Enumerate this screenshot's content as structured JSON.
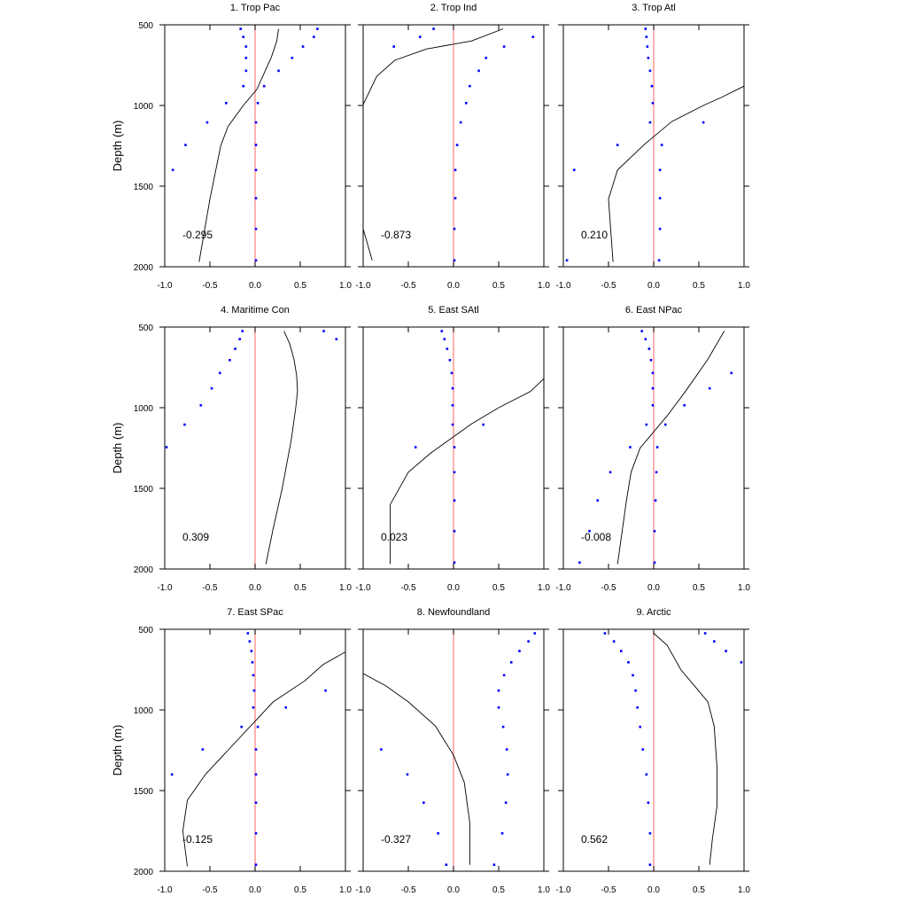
{
  "chart_data": [
    {
      "type": "line",
      "title": "1. Trop Pac",
      "correlation": "-0.295",
      "ylabel": "Depth (m)",
      "xlim": [
        -1.0,
        1.0
      ],
      "ylim": [
        500,
        2000
      ],
      "xticks": [
        "-1.0",
        "-0.5",
        "0.0",
        "0.5",
        "1.0"
      ],
      "yticks": [
        "500",
        "1000",
        "1500",
        "2000"
      ],
      "zero_line_color": "#ff8080",
      "points_color": "#0000ff",
      "line_color": "#000000",
      "points": [
        [
          -0.16,
          525
        ],
        [
          -0.13,
          575
        ],
        [
          -0.1,
          635
        ],
        [
          -0.1,
          705
        ],
        [
          -0.1,
          785
        ],
        [
          -0.13,
          880
        ],
        [
          -0.32,
          985
        ],
        [
          -0.53,
          1105
        ],
        [
          -0.77,
          1245
        ],
        [
          -0.91,
          1400
        ],
        [
          0.03,
          985
        ],
        [
          0.01,
          1105
        ],
        [
          0.01,
          1245
        ],
        [
          0.01,
          1400
        ],
        [
          0.01,
          1575
        ],
        [
          0.01,
          1765
        ],
        [
          0.01,
          1960
        ],
        [
          0.69,
          525
        ],
        [
          0.65,
          575
        ],
        [
          0.53,
          635
        ],
        [
          0.41,
          705
        ],
        [
          0.26,
          785
        ],
        [
          0.1,
          880
        ]
      ],
      "line": [
        [
          0.26,
          525
        ],
        [
          0.24,
          600
        ],
        [
          0.18,
          700
        ],
        [
          0.1,
          800
        ],
        [
          0.02,
          900
        ],
        [
          -0.13,
          1000
        ],
        [
          -0.3,
          1130
        ],
        [
          -0.38,
          1250
        ],
        [
          -0.5,
          1580
        ],
        [
          -0.62,
          1970
        ]
      ]
    },
    {
      "type": "line",
      "title": "2. Trop Ind",
      "correlation": "-0.873",
      "ylabel": "",
      "xlim": [
        -1.0,
        1.0
      ],
      "ylim": [
        500,
        2000
      ],
      "xticks": [
        "-1.0",
        "-0.5",
        "0.0",
        "0.5",
        "1.0"
      ],
      "yticks": [],
      "zero_line_color": "#ff8080",
      "points_color": "#0000ff",
      "line_color": "#000000",
      "points": [
        [
          -0.22,
          525
        ],
        [
          -0.37,
          575
        ],
        [
          -0.66,
          635
        ],
        [
          0.88,
          575
        ],
        [
          0.56,
          635
        ],
        [
          0.36,
          705
        ],
        [
          0.28,
          785
        ],
        [
          0.18,
          880
        ],
        [
          0.14,
          985
        ],
        [
          0.08,
          1105
        ],
        [
          0.04,
          1245
        ],
        [
          0.02,
          1400
        ],
        [
          0.02,
          1575
        ],
        [
          0.01,
          1765
        ],
        [
          0.01,
          1960
        ]
      ],
      "line": [
        [
          0.55,
          525
        ],
        [
          0.2,
          600
        ],
        [
          -0.3,
          650
        ],
        [
          -0.65,
          720
        ],
        [
          -0.85,
          820
        ],
        [
          -1.0,
          995
        ]
      ],
      "line2": [
        [
          -1.0,
          1765
        ],
        [
          -0.9,
          1960
        ]
      ]
    },
    {
      "type": "line",
      "title": "3. Trop Atl",
      "correlation": "0.210",
      "ylabel": "",
      "xlim": [
        -1.0,
        1.0
      ],
      "ylim": [
        500,
        2000
      ],
      "xticks": [
        "-1.0",
        "-0.5",
        "0.0",
        "0.5",
        "1.0"
      ],
      "yticks": [],
      "zero_line_color": "#ff8080",
      "points_color": "#0000ff",
      "line_color": "#000000",
      "points": [
        [
          -0.09,
          525
        ],
        [
          -0.08,
          575
        ],
        [
          -0.07,
          635
        ],
        [
          -0.06,
          705
        ],
        [
          -0.04,
          785
        ],
        [
          -0.02,
          880
        ],
        [
          -0.01,
          985
        ],
        [
          -0.04,
          1105
        ],
        [
          -0.4,
          1245
        ],
        [
          -0.88,
          1400
        ],
        [
          -0.96,
          1960
        ],
        [
          0.55,
          1105
        ],
        [
          0.09,
          1245
        ],
        [
          0.07,
          1400
        ],
        [
          0.07,
          1575
        ],
        [
          0.07,
          1765
        ],
        [
          0.06,
          1960
        ]
      ],
      "line": [
        [
          1.0,
          880
        ],
        [
          0.75,
          950
        ],
        [
          0.55,
          1000
        ],
        [
          0.2,
          1100
        ],
        [
          -0.1,
          1240
        ],
        [
          -0.4,
          1400
        ],
        [
          -0.5,
          1580
        ],
        [
          -0.45,
          1970
        ]
      ]
    },
    {
      "type": "line",
      "title": "4. Maritime Con",
      "correlation": "0.309",
      "ylabel": "Depth (m)",
      "xlim": [
        -1.0,
        1.0
      ],
      "ylim": [
        500,
        2000
      ],
      "xticks": [
        "-1.0",
        "-0.5",
        "0.0",
        "0.5",
        "1.0"
      ],
      "yticks": [
        "500",
        "1000",
        "1500",
        "2000"
      ],
      "zero_line_color": "#ff8080",
      "points_color": "#0000ff",
      "line_color": "#000000",
      "points": [
        [
          -0.14,
          525
        ],
        [
          -0.17,
          575
        ],
        [
          -0.22,
          635
        ],
        [
          -0.28,
          705
        ],
        [
          -0.39,
          785
        ],
        [
          -0.48,
          880
        ],
        [
          -0.6,
          985
        ],
        [
          -0.78,
          1105
        ],
        [
          -0.98,
          1245
        ],
        [
          0.76,
          525
        ],
        [
          0.9,
          575
        ]
      ],
      "line": [
        [
          0.32,
          525
        ],
        [
          0.38,
          600
        ],
        [
          0.43,
          700
        ],
        [
          0.46,
          800
        ],
        [
          0.47,
          900
        ],
        [
          0.45,
          1000
        ],
        [
          0.4,
          1200
        ],
        [
          0.35,
          1350
        ],
        [
          0.3,
          1500
        ],
        [
          0.2,
          1750
        ],
        [
          0.12,
          1970
        ]
      ]
    },
    {
      "type": "line",
      "title": "5. East SAtl",
      "correlation": "0.023",
      "ylabel": "",
      "xlim": [
        -1.0,
        1.0
      ],
      "ylim": [
        500,
        2000
      ],
      "xticks": [
        "-1.0",
        "-0.5",
        "0.0",
        "0.5",
        "1.0"
      ],
      "yticks": [],
      "zero_line_color": "#ff8080",
      "points_color": "#0000ff",
      "line_color": "#000000",
      "points": [
        [
          -0.13,
          525
        ],
        [
          -0.1,
          575
        ],
        [
          -0.07,
          635
        ],
        [
          -0.04,
          705
        ],
        [
          -0.02,
          785
        ],
        [
          -0.01,
          880
        ],
        [
          -0.01,
          985
        ],
        [
          -0.01,
          1105
        ],
        [
          -0.42,
          1245
        ],
        [
          0.33,
          1105
        ],
        [
          0.01,
          1245
        ],
        [
          0.01,
          1400
        ],
        [
          0.01,
          1575
        ],
        [
          0.01,
          1765
        ],
        [
          0.01,
          1960
        ]
      ],
      "line": [
        [
          1.0,
          820
        ],
        [
          0.85,
          900
        ],
        [
          0.5,
          1000
        ],
        [
          0.2,
          1100
        ],
        [
          0.0,
          1180
        ],
        [
          -0.25,
          1280
        ],
        [
          -0.5,
          1400
        ],
        [
          -0.7,
          1600
        ],
        [
          -0.7,
          1970
        ]
      ]
    },
    {
      "type": "line",
      "title": "6. East NPac",
      "correlation": "-0.008",
      "ylabel": "",
      "xlim": [
        -1.0,
        1.0
      ],
      "ylim": [
        500,
        2000
      ],
      "xticks": [
        "-1.0",
        "-0.5",
        "0.0",
        "0.5",
        "1.0"
      ],
      "yticks": [],
      "zero_line_color": "#ff8080",
      "points_color": "#0000ff",
      "line_color": "#000000",
      "points": [
        [
          -0.13,
          525
        ],
        [
          -0.09,
          575
        ],
        [
          -0.05,
          635
        ],
        [
          -0.03,
          705
        ],
        [
          -0.01,
          785
        ],
        [
          -0.01,
          880
        ],
        [
          -0.01,
          985
        ],
        [
          -0.08,
          1105
        ],
        [
          -0.26,
          1245
        ],
        [
          -0.48,
          1400
        ],
        [
          -0.62,
          1575
        ],
        [
          -0.71,
          1765
        ],
        [
          -0.82,
          1960
        ],
        [
          0.86,
          785
        ],
        [
          0.62,
          880
        ],
        [
          0.34,
          985
        ],
        [
          0.13,
          1105
        ],
        [
          0.04,
          1245
        ],
        [
          0.03,
          1400
        ],
        [
          0.02,
          1575
        ],
        [
          0.01,
          1765
        ],
        [
          0.01,
          1960
        ]
      ],
      "line": [
        [
          0.78,
          525
        ],
        [
          0.6,
          700
        ],
        [
          0.35,
          900
        ],
        [
          0.15,
          1050
        ],
        [
          -0.15,
          1250
        ],
        [
          -0.25,
          1400
        ],
        [
          -0.3,
          1570
        ],
        [
          -0.4,
          1970
        ]
      ]
    },
    {
      "type": "line",
      "title": "7. East SPac",
      "correlation": "-0.125",
      "ylabel": "Depth (m)",
      "xlim": [
        -1.0,
        1.0
      ],
      "ylim": [
        500,
        2000
      ],
      "xticks": [
        "-1.0",
        "-0.5",
        "0.0",
        "0.5",
        "1.0"
      ],
      "yticks": [
        "500",
        "1000",
        "1500",
        "2000"
      ],
      "zero_line_color": "#ff8080",
      "points_color": "#0000ff",
      "line_color": "#000000",
      "points": [
        [
          -0.08,
          525
        ],
        [
          -0.06,
          575
        ],
        [
          -0.04,
          635
        ],
        [
          -0.03,
          705
        ],
        [
          -0.02,
          785
        ],
        [
          -0.01,
          880
        ],
        [
          -0.02,
          985
        ],
        [
          -0.15,
          1105
        ],
        [
          -0.58,
          1245
        ],
        [
          -0.92,
          1400
        ],
        [
          0.34,
          985
        ],
        [
          0.78,
          880
        ],
        [
          0.03,
          1105
        ],
        [
          0.01,
          1245
        ],
        [
          0.01,
          1400
        ],
        [
          0.01,
          1575
        ],
        [
          0.01,
          1765
        ],
        [
          0.01,
          1960
        ]
      ],
      "line": [
        [
          1.0,
          640
        ],
        [
          0.75,
          720
        ],
        [
          0.55,
          820
        ],
        [
          0.2,
          950
        ],
        [
          -0.05,
          1100
        ],
        [
          -0.3,
          1250
        ],
        [
          -0.55,
          1400
        ],
        [
          -0.75,
          1560
        ],
        [
          -0.8,
          1750
        ],
        [
          -0.75,
          1970
        ]
      ]
    },
    {
      "type": "line",
      "title": "8. Newfoundland",
      "correlation": "-0.327",
      "ylabel": "",
      "xlim": [
        -1.0,
        1.0
      ],
      "ylim": [
        500,
        2000
      ],
      "xticks": [
        "-1.0",
        "-0.5",
        "0.0",
        "0.5",
        "1.0"
      ],
      "yticks": [],
      "zero_line_color": "#ff8080",
      "points_color": "#0000ff",
      "line_color": "#000000",
      "points": [
        [
          0.9,
          525
        ],
        [
          0.83,
          575
        ],
        [
          0.73,
          635
        ],
        [
          0.64,
          705
        ],
        [
          0.56,
          785
        ],
        [
          0.5,
          880
        ],
        [
          0.5,
          985
        ],
        [
          0.55,
          1105
        ],
        [
          0.59,
          1245
        ],
        [
          0.6,
          1400
        ],
        [
          0.58,
          1575
        ],
        [
          0.54,
          1765
        ],
        [
          0.45,
          1960
        ],
        [
          -0.8,
          1245
        ],
        [
          -0.51,
          1400
        ],
        [
          -0.33,
          1575
        ],
        [
          -0.17,
          1765
        ],
        [
          -0.08,
          1960
        ]
      ],
      "line": [
        [
          -1.0,
          775
        ],
        [
          -0.75,
          850
        ],
        [
          -0.5,
          950
        ],
        [
          -0.2,
          1100
        ],
        [
          0.0,
          1280
        ],
        [
          0.12,
          1450
        ],
        [
          0.18,
          1700
        ],
        [
          0.18,
          1960
        ]
      ]
    },
    {
      "type": "line",
      "title": "9. Arctic",
      "correlation": "0.562",
      "ylabel": "",
      "xlim": [
        -1.0,
        1.0
      ],
      "ylim": [
        500,
        2000
      ],
      "xticks": [
        "-1.0",
        "-0.5",
        "0.0",
        "0.5",
        "1.0"
      ],
      "yticks": [],
      "zero_line_color": "#ff8080",
      "points_color": "#0000ff",
      "line_color": "#000000",
      "points": [
        [
          -0.54,
          525
        ],
        [
          -0.44,
          575
        ],
        [
          -0.36,
          635
        ],
        [
          -0.28,
          705
        ],
        [
          -0.23,
          785
        ],
        [
          -0.2,
          880
        ],
        [
          -0.18,
          985
        ],
        [
          -0.15,
          1105
        ],
        [
          -0.12,
          1245
        ],
        [
          -0.08,
          1400
        ],
        [
          -0.06,
          1575
        ],
        [
          -0.04,
          1765
        ],
        [
          -0.04,
          1960
        ],
        [
          0.57,
          525
        ],
        [
          0.67,
          575
        ],
        [
          0.8,
          635
        ],
        [
          0.97,
          705
        ]
      ],
      "line": [
        [
          0.0,
          525
        ],
        [
          0.15,
          600
        ],
        [
          0.3,
          750
        ],
        [
          0.45,
          850
        ],
        [
          0.6,
          950
        ],
        [
          0.67,
          1100
        ],
        [
          0.7,
          1350
        ],
        [
          0.7,
          1600
        ],
        [
          0.65,
          1800
        ],
        [
          0.62,
          1960
        ]
      ]
    }
  ]
}
